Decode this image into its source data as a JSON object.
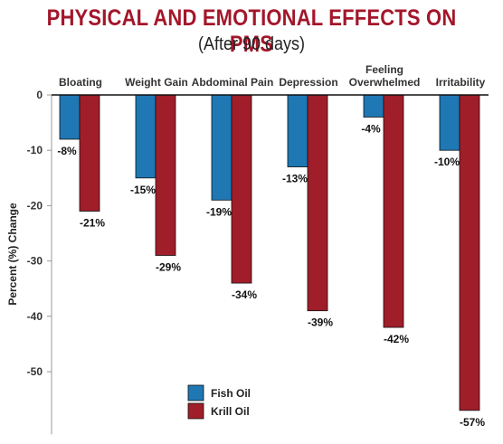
{
  "title": "PHYSICAL AND EMOTIONAL EFFECTS ON PMS",
  "subtitle": "(After 90 days)",
  "colors": {
    "title": "#a3162a",
    "fish_oil": "#1f77b4",
    "krill_oil": "#a01d2a"
  },
  "chart_data": {
    "type": "bar",
    "title": "PHYSICAL AND EMOTIONAL EFFECTS ON PMS",
    "subtitle": "(After 90 days)",
    "xlabel": "",
    "ylabel": "Percent (%) Change",
    "ylim": [
      -60,
      0
    ],
    "yticks": [
      0,
      -10,
      -20,
      -30,
      -40,
      -50
    ],
    "grid": false,
    "legend_position": "bottom-center",
    "categories": [
      [
        "Bloating"
      ],
      [
        "Weight Gain"
      ],
      [
        "Abdominal Pain"
      ],
      [
        "Depression"
      ],
      [
        "Feeling",
        "Overwhelmed"
      ],
      [
        "Irritability"
      ]
    ],
    "series": [
      {
        "name": "Fish Oil",
        "values": [
          -8,
          -15,
          -19,
          -13,
          -4,
          -10
        ],
        "labels": [
          "-8%",
          "-15%",
          "-19%",
          "-13%",
          "-4%",
          "-10%"
        ]
      },
      {
        "name": "Krill Oil",
        "values": [
          -21,
          -29,
          -34,
          -39,
          -42,
          -57
        ],
        "labels": [
          "-21%",
          "-29%",
          "-34%",
          "-39%",
          "-42%",
          "-57%"
        ]
      }
    ]
  }
}
